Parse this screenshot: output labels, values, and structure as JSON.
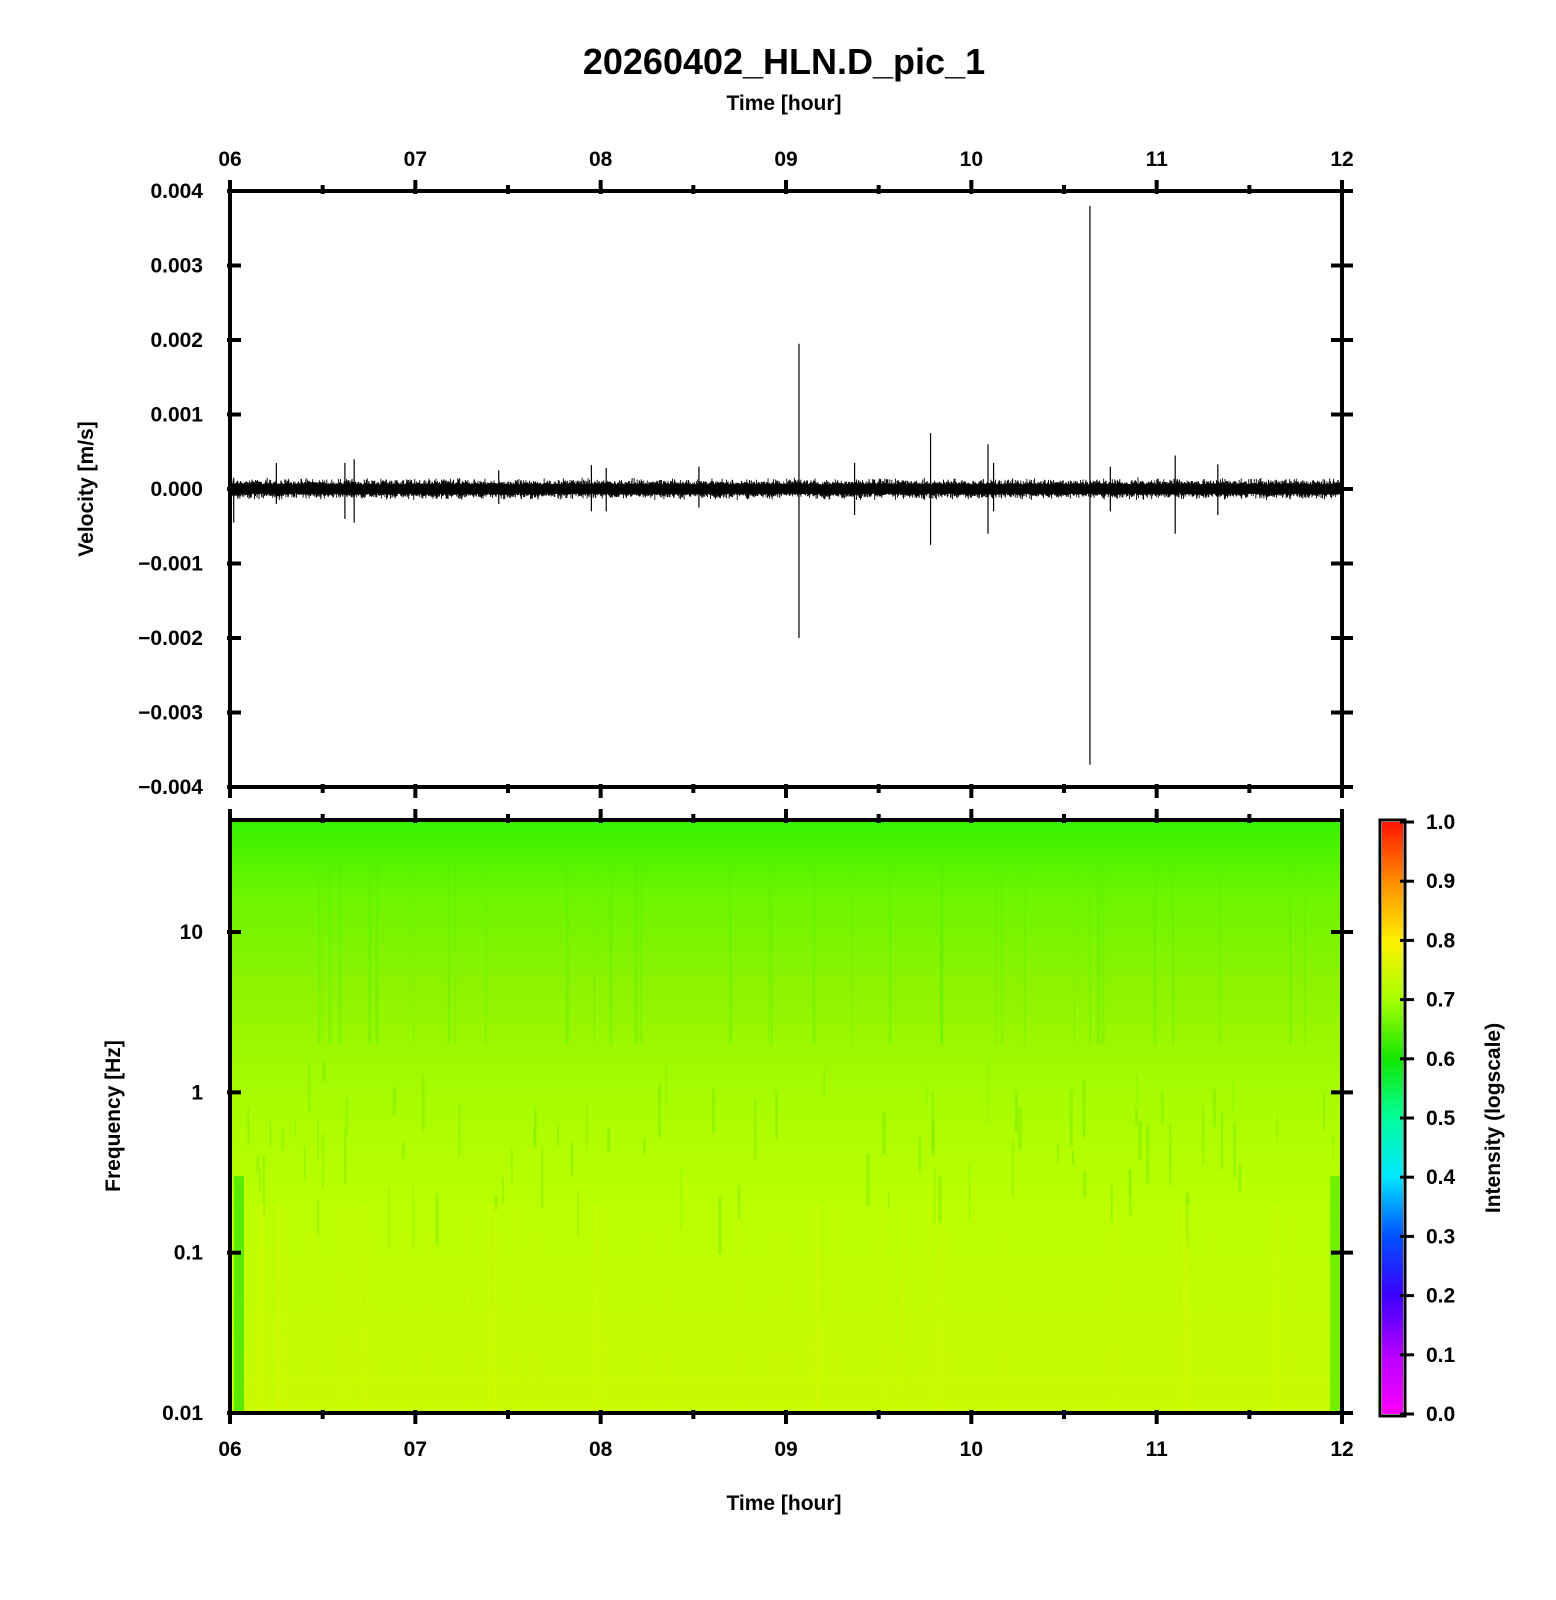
{
  "title": "20260402_HLN.D_pic_1",
  "top_axis_label": "Time [hour]",
  "bottom_axis_label": "Time [hour]",
  "time_ticks": [
    "06",
    "07",
    "08",
    "09",
    "10",
    "11",
    "12"
  ],
  "colors": {
    "axis": "#000000",
    "trace": "#000000",
    "spectrogram_base": "#a6ff00",
    "spectrogram_top": "#3cf500"
  },
  "chart_data": [
    {
      "type": "line",
      "panel": "waveform",
      "xlabel": "Time [hour]",
      "ylabel": "Velocity [m/s]",
      "xlim": [
        6,
        12
      ],
      "ylim": [
        -0.004,
        0.004
      ],
      "y_ticks": [
        "0.004",
        "0.003",
        "0.002",
        "0.001",
        "0.000",
        "−0.001",
        "−0.002",
        "−0.003",
        "−0.004"
      ],
      "noise_amplitude": 0.0001,
      "events": [
        {
          "t": 6.02,
          "max": 0.00015,
          "min": -0.00045
        },
        {
          "t": 6.25,
          "max": 0.00035,
          "min": -0.0002
        },
        {
          "t": 6.62,
          "max": 0.00035,
          "min": -0.0004
        },
        {
          "t": 6.67,
          "max": 0.0004,
          "min": -0.00045
        },
        {
          "t": 7.45,
          "max": 0.00025,
          "min": -0.0002
        },
        {
          "t": 7.95,
          "max": 0.00032,
          "min": -0.0003
        },
        {
          "t": 8.03,
          "max": 0.00028,
          "min": -0.0003
        },
        {
          "t": 8.53,
          "max": 0.0003,
          "min": -0.00025
        },
        {
          "t": 9.07,
          "max": 0.00195,
          "min": -0.002
        },
        {
          "t": 9.37,
          "max": 0.00035,
          "min": -0.00035
        },
        {
          "t": 9.78,
          "max": 0.00075,
          "min": -0.00075
        },
        {
          "t": 10.09,
          "max": 0.0006,
          "min": -0.0006
        },
        {
          "t": 10.12,
          "max": 0.00035,
          "min": -0.0003
        },
        {
          "t": 10.64,
          "max": 0.0038,
          "min": -0.0037
        },
        {
          "t": 10.75,
          "max": 0.0003,
          "min": -0.0003
        },
        {
          "t": 11.1,
          "max": 0.00045,
          "min": -0.0006
        },
        {
          "t": 11.33,
          "max": 0.00033,
          "min": -0.00035
        }
      ]
    },
    {
      "type": "heatmap",
      "panel": "spectrogram",
      "xlabel": "Time [hour]",
      "ylabel": "Frequency [Hz]",
      "xlim": [
        6,
        12
      ],
      "ylim": [
        0.01,
        50
      ],
      "y_scale": "log",
      "y_ticks": [
        "10",
        "1",
        "0.1",
        "0.01"
      ],
      "colorbar": {
        "label": "Intensity (logscale)",
        "range": [
          0.0,
          1.0
        ],
        "ticks": [
          "1.0",
          "0.9",
          "0.8",
          "0.7",
          "0.6",
          "0.5",
          "0.4",
          "0.3",
          "0.2",
          "0.1",
          "0.0"
        ]
      },
      "intensity_profile": [
        {
          "freq": 50,
          "value": 0.62
        },
        {
          "freq": 10,
          "value": 0.66
        },
        {
          "freq": 1,
          "value": 0.71
        },
        {
          "freq": 0.1,
          "value": 0.74
        },
        {
          "freq": 0.01,
          "value": 0.76
        }
      ]
    }
  ]
}
